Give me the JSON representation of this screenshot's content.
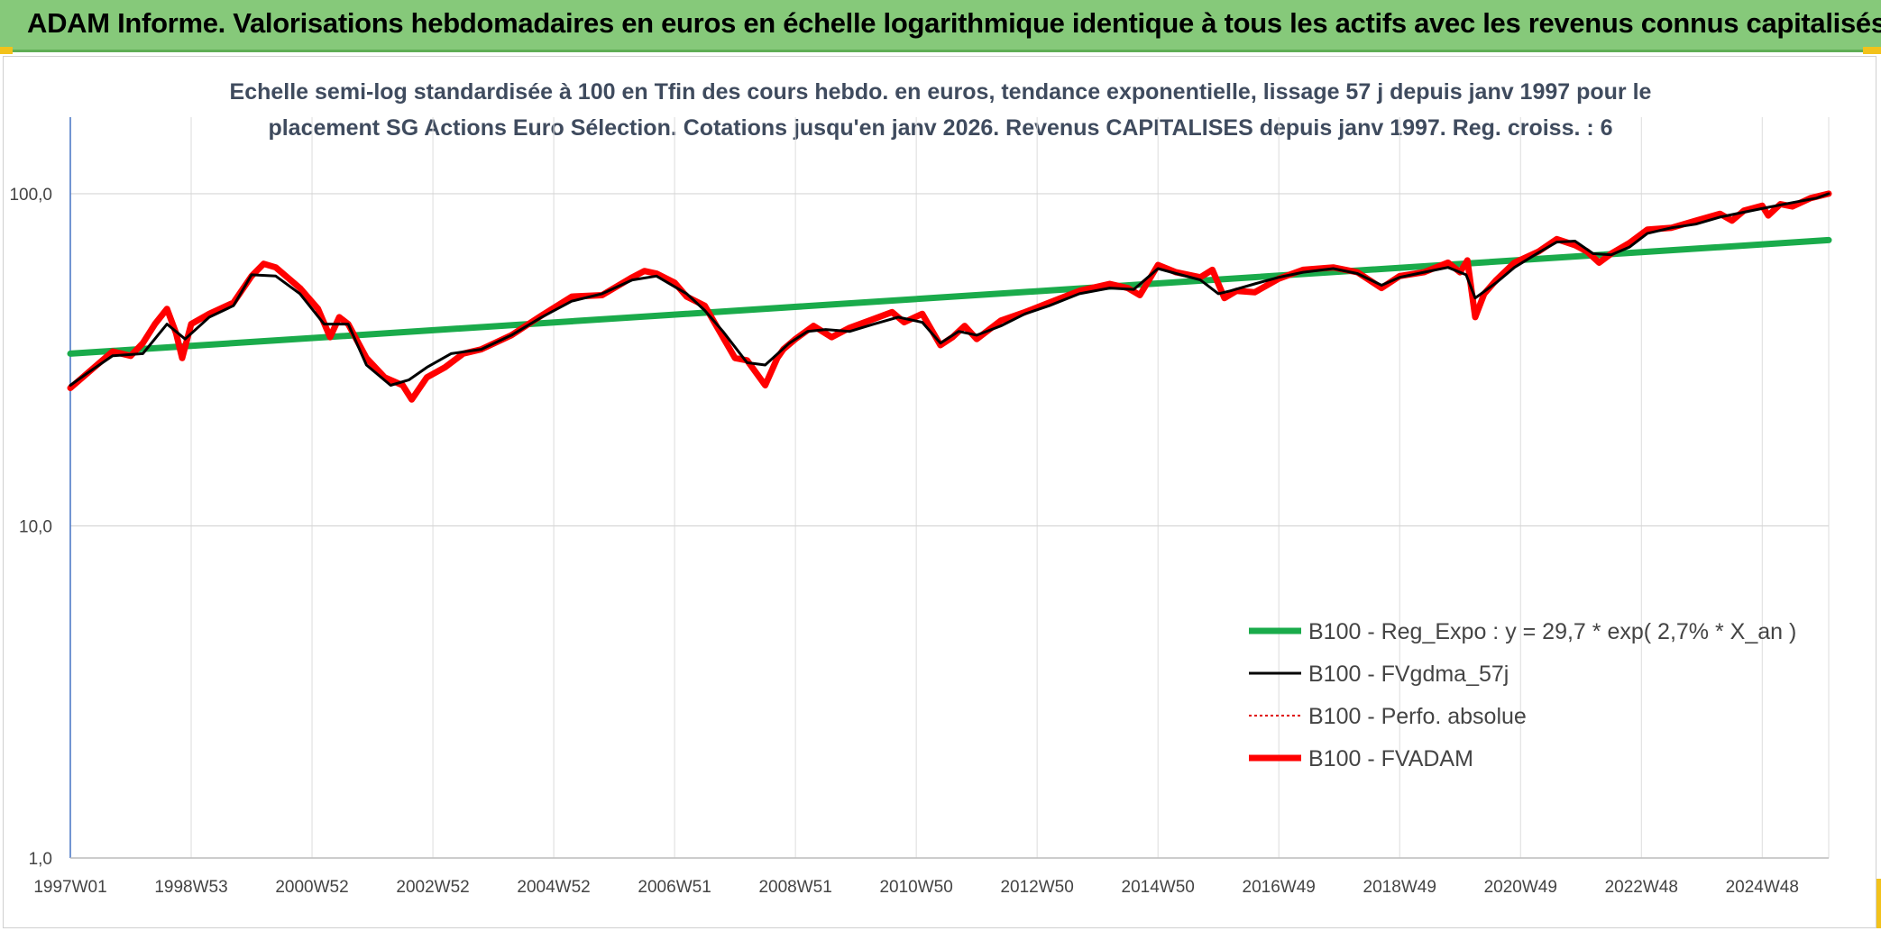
{
  "header": {
    "title": "ADAM Informe. Valorisations hebdomadaires en euros en échelle logarithmique identique à tous les actifs avec les revenus connus capitalisés"
  },
  "chart_data": {
    "type": "line",
    "title_line1": "Echelle semi-log standardisée à 100 en Tfin des cours hebdo. en euros, tendance exponentielle, lissage 57 j depuis janv 1997 pour le",
    "title_line2": "placement SG Actions Euro Sélection. Cotations jusqu'en janv 2026. Revenus CAPITALISES depuis janv 1997. Reg. croiss. : 6",
    "xlabel": "",
    "ylabel": "",
    "yscale": "log",
    "ylim": [
      1,
      170
    ],
    "xlim": [
      1997.0,
      2026.1
    ],
    "grid": true,
    "legend_position": "bottom-right",
    "y_ticks": [
      {
        "value": 1,
        "label": "1,0"
      },
      {
        "value": 10,
        "label": "10,0"
      },
      {
        "value": 100,
        "label": "100,0"
      }
    ],
    "x_ticks": [
      {
        "value": 1997.0,
        "label": "1997W01"
      },
      {
        "value": 1999.0,
        "label": "1998W53"
      },
      {
        "value": 2001.0,
        "label": "2000W52"
      },
      {
        "value": 2003.0,
        "label": "2002W52"
      },
      {
        "value": 2005.0,
        "label": "2004W52"
      },
      {
        "value": 2007.0,
        "label": "2006W51"
      },
      {
        "value": 2009.0,
        "label": "2008W51"
      },
      {
        "value": 2011.0,
        "label": "2010W50"
      },
      {
        "value": 2013.0,
        "label": "2012W50"
      },
      {
        "value": 2015.0,
        "label": "2014W50"
      },
      {
        "value": 2017.0,
        "label": "2016W49"
      },
      {
        "value": 2019.0,
        "label": "2018W49"
      },
      {
        "value": 2021.0,
        "label": "2020W49"
      },
      {
        "value": 2023.0,
        "label": "2022W48"
      },
      {
        "value": 2025.0,
        "label": "2024W48"
      }
    ],
    "series": [
      {
        "name": "B100 - Reg_Expo : y = 29,7 * exp( 2,7% *  X_an )",
        "color": "#1aab4b",
        "style": "solid-thick",
        "x": [
          1997.0,
          2026.1
        ],
        "y": [
          33.0,
          72.5
        ]
      },
      {
        "name": "B100 - FVgdma_57j",
        "color": "#000000",
        "style": "solid",
        "x": [
          1997.0,
          1997.3,
          1997.7,
          1998.2,
          1998.6,
          1998.9,
          1999.3,
          1999.7,
          2000.0,
          2000.4,
          2000.8,
          2001.2,
          2001.6,
          2001.9,
          2002.3,
          2002.6,
          2002.9,
          2003.3,
          2003.8,
          2004.3,
          2004.8,
          2005.3,
          2005.8,
          2006.3,
          2006.7,
          2007.2,
          2007.5,
          2007.8,
          2008.2,
          2008.5,
          2008.9,
          2009.2,
          2009.5,
          2009.9,
          2010.3,
          2010.7,
          2011.1,
          2011.4,
          2011.7,
          2012.0,
          2012.4,
          2012.8,
          2013.2,
          2013.7,
          2014.2,
          2014.6,
          2015.0,
          2015.3,
          2015.7,
          2016.0,
          2016.2,
          2016.6,
          2017.0,
          2017.4,
          2017.9,
          2018.3,
          2018.7,
          2019.0,
          2019.4,
          2019.8,
          2020.1,
          2020.25,
          2020.6,
          2020.9,
          2021.3,
          2021.6,
          2021.9,
          2022.2,
          2022.5,
          2022.8,
          2023.1,
          2023.5,
          2023.9,
          2024.3,
          2024.7,
          2025.1,
          2025.5,
          2025.9,
          2026.1
        ],
        "y": [
          26.5,
          29.0,
          32.5,
          33.0,
          40.5,
          36.5,
          42.5,
          46.0,
          57.0,
          56.5,
          50.0,
          40.5,
          40.5,
          30.5,
          26.5,
          27.5,
          30.0,
          33.0,
          34.0,
          37.5,
          42.5,
          47.5,
          50.0,
          55.0,
          56.5,
          50.0,
          44.5,
          38.5,
          31.0,
          30.5,
          35.5,
          38.5,
          39.0,
          38.5,
          40.5,
          42.5,
          41.0,
          35.5,
          38.5,
          37.5,
          40.0,
          43.5,
          46.0,
          50.0,
          52.0,
          51.5,
          59.5,
          57.5,
          55.0,
          50.0,
          51.0,
          53.5,
          56.0,
          58.0,
          59.5,
          57.5,
          53.0,
          56.0,
          58.0,
          60.0,
          57.0,
          48.5,
          54.0,
          60.0,
          66.5,
          71.5,
          72.0,
          66.0,
          65.5,
          69.0,
          76.0,
          79.0,
          81.0,
          85.0,
          88.0,
          91.0,
          94.0,
          97.0,
          100.0
        ]
      },
      {
        "name": "B100 - Perfo. absolue",
        "color": "#e00000",
        "style": "dotted",
        "x": [],
        "y": []
      },
      {
        "name": "B100 - FVADAM",
        "color": "#ff0000",
        "style": "solid-thick",
        "x": [
          1997.0,
          1997.3,
          1997.7,
          1998.0,
          1998.2,
          1998.4,
          1998.6,
          1998.75,
          1998.85,
          1999.0,
          1999.3,
          1999.7,
          2000.0,
          2000.2,
          2000.4,
          2000.8,
          2001.1,
          2001.3,
          2001.45,
          2001.6,
          2001.9,
          2002.2,
          2002.5,
          2002.65,
          2002.9,
          2003.2,
          2003.5,
          2003.8,
          2004.3,
          2004.8,
          2005.3,
          2005.8,
          2006.3,
          2006.5,
          2006.7,
          2007.0,
          2007.2,
          2007.5,
          2007.8,
          2008.0,
          2008.2,
          2008.5,
          2008.7,
          2008.8,
          2009.0,
          2009.3,
          2009.6,
          2009.9,
          2010.3,
          2010.6,
          2010.8,
          2011.1,
          2011.4,
          2011.6,
          2011.8,
          2012.0,
          2012.4,
          2012.8,
          2013.2,
          2013.7,
          2014.2,
          2014.5,
          2014.7,
          2015.0,
          2015.3,
          2015.7,
          2015.9,
          2016.1,
          2016.3,
          2016.6,
          2017.0,
          2017.4,
          2017.9,
          2018.3,
          2018.7,
          2019.0,
          2019.4,
          2019.8,
          2020.0,
          2020.12,
          2020.25,
          2020.4,
          2020.6,
          2020.9,
          2021.3,
          2021.6,
          2021.9,
          2022.1,
          2022.3,
          2022.5,
          2022.8,
          2023.1,
          2023.5,
          2023.9,
          2024.3,
          2024.5,
          2024.7,
          2025.0,
          2025.1,
          2025.3,
          2025.5,
          2025.8,
          2026.1
        ],
        "y": [
          26.0,
          29.0,
          33.5,
          32.5,
          35.5,
          40.5,
          45.0,
          38.0,
          32.0,
          40.5,
          43.5,
          47.0,
          56.5,
          61.5,
          60.0,
          52.0,
          45.0,
          37.0,
          42.5,
          40.5,
          32.0,
          28.0,
          26.5,
          24.0,
          28.0,
          30.0,
          33.0,
          34.0,
          37.5,
          43.0,
          49.0,
          49.5,
          56.0,
          58.5,
          57.5,
          54.0,
          49.0,
          46.0,
          37.0,
          32.0,
          31.5,
          26.5,
          32.0,
          34.0,
          36.5,
          40.0,
          37.0,
          39.5,
          42.0,
          44.0,
          41.0,
          43.5,
          35.0,
          37.0,
          40.0,
          36.5,
          41.5,
          44.0,
          47.0,
          51.0,
          53.5,
          52.0,
          49.5,
          61.0,
          58.0,
          56.0,
          59.0,
          48.5,
          51.0,
          50.5,
          55.5,
          59.0,
          60.0,
          58.0,
          52.0,
          56.5,
          58.0,
          62.0,
          58.0,
          63.0,
          42.5,
          50.0,
          55.0,
          62.0,
          67.0,
          73.0,
          70.0,
          67.0,
          62.0,
          66.0,
          71.0,
          78.0,
          79.0,
          83.0,
          87.0,
          83.0,
          89.0,
          92.0,
          86.0,
          93.0,
          91.5,
          97.0,
          100.0
        ]
      }
    ]
  }
}
